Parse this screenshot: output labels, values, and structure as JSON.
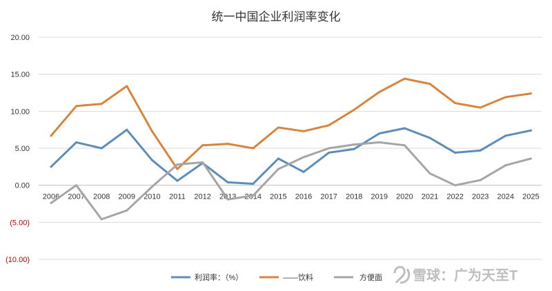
{
  "chart_data": {
    "type": "line",
    "title": "统一中国企业利润率变化",
    "xlabel": "",
    "ylabel": "",
    "categories": [
      "2006",
      "2007",
      "2008",
      "2009",
      "2010",
      "2011",
      "2012",
      "2013",
      "2014",
      "2015",
      "2016",
      "2017",
      "2018",
      "2019",
      "2020",
      "2021",
      "2022",
      "2023",
      "2024",
      "2025"
    ],
    "ylim": [
      -10,
      20
    ],
    "yticks": [
      {
        "value": 20,
        "label": "20.00"
      },
      {
        "value": 15,
        "label": "15.00"
      },
      {
        "value": 10,
        "label": "10.00"
      },
      {
        "value": 5,
        "label": "5.00"
      },
      {
        "value": 0,
        "label": "0.00"
      },
      {
        "value": -5,
        "label": "(5.00)"
      },
      {
        "value": -10,
        "label": "(10.00)"
      }
    ],
    "grid": true,
    "legend_position": "bottom",
    "series": [
      {
        "name": "利润率：（%）",
        "color": "#5b8db8",
        "values": [
          2.5,
          5.8,
          5.0,
          7.5,
          3.4,
          0.6,
          3.0,
          0.4,
          0.2,
          3.6,
          1.8,
          4.4,
          4.9,
          7.0,
          7.7,
          6.4,
          4.4,
          4.7,
          6.7,
          7.4
        ]
      },
      {
        "name": "——饮料",
        "color": "#d9843b",
        "values": [
          6.7,
          10.7,
          11.0,
          13.4,
          7.3,
          2.2,
          5.4,
          5.6,
          5.0,
          7.8,
          7.3,
          8.1,
          10.2,
          12.6,
          14.4,
          13.7,
          11.1,
          10.5,
          11.9,
          12.4
        ]
      },
      {
        "name": "方便面",
        "color": "#a5a5a5",
        "values": [
          -2.4,
          0.0,
          -4.6,
          -3.4,
          -0.2,
          2.8,
          3.1,
          -1.9,
          -1.4,
          2.2,
          3.8,
          5.0,
          5.5,
          5.8,
          5.4,
          1.6,
          0.0,
          0.7,
          2.7,
          3.6
        ]
      }
    ]
  },
  "watermark": {
    "text": "雪球：广为天至T",
    "icon": "snowball-logo-icon"
  }
}
